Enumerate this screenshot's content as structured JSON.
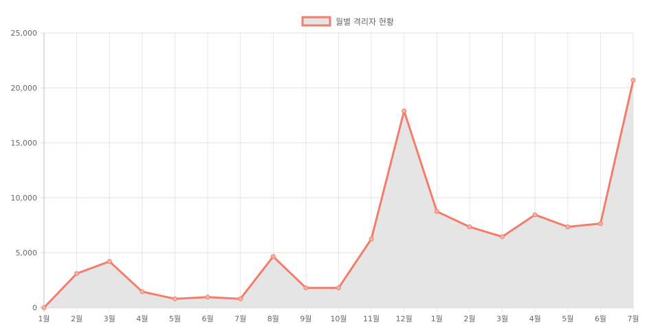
{
  "chart_data": {
    "type": "line",
    "title": "",
    "legend": {
      "position": "top-center",
      "entries": [
        "월별 격리자 현황"
      ]
    },
    "categories": [
      "1월",
      "2월",
      "3월",
      "4월",
      "5월",
      "6월",
      "7월",
      "8월",
      "9월",
      "10월",
      "11월",
      "12월",
      "1월",
      "2월",
      "3월",
      "4월",
      "5월",
      "6월",
      "7월"
    ],
    "series": [
      {
        "name": "월별 격리자 현황",
        "values": [
          0,
          3100,
          4200,
          1450,
          800,
          950,
          800,
          4650,
          1800,
          1800,
          6250,
          17900,
          8750,
          7350,
          6450,
          8450,
          7350,
          7650,
          20700
        ],
        "color": "#f47c6a",
        "fill": "#e5e5e5"
      }
    ],
    "xlabel": "",
    "ylabel": "",
    "ylim": [
      0,
      25000
    ],
    "yticks": [
      0,
      5000,
      10000,
      15000,
      20000,
      25000
    ],
    "ytick_labels": [
      "0",
      "5,000",
      "10,000",
      "15,000",
      "20,000",
      "25,000"
    ],
    "grid": true,
    "area_fill": true
  }
}
